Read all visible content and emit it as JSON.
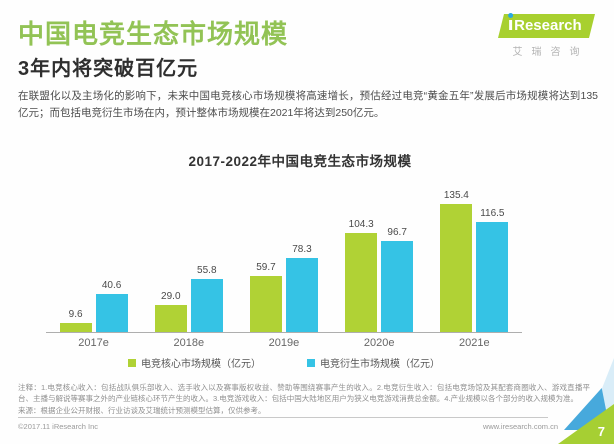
{
  "header": {
    "title": "中国电竞生态市场规模",
    "subtitle": "3年内将突破百亿元",
    "intro": "在联盟化以及主场化的影响下，未来中国电竞核心市场规模将高速增长，预估经过电竞“黄金五年”发展后市场规模将达到135亿元；而包括电竞衍生市场在内，预计整体市场规模在2021年将达到250亿元。",
    "logo": {
      "brand": "Research",
      "brand_cn": "艾瑞咨询"
    }
  },
  "chart_data": {
    "type": "bar",
    "title": "2017-2022年中国电竞生态市场规模",
    "categories": [
      "2017e",
      "2018e",
      "2019e",
      "2020e",
      "2021e"
    ],
    "series": [
      {
        "name": "电竞核心市场规模（亿元）",
        "color": "#b0d235",
        "values": [
          9.6,
          29.0,
          59.7,
          104.3,
          135.4
        ],
        "value_labels": [
          "9.6",
          "29.0",
          "59.7",
          "104.3",
          "135.4"
        ]
      },
      {
        "name": "电竞衍生市场规模（亿元）",
        "color": "#35c3e5",
        "values": [
          40.6,
          55.8,
          78.3,
          96.7,
          116.5
        ],
        "value_labels": [
          "40.6",
          "55.8",
          "78.3",
          "96.7",
          "116.5"
        ]
      }
    ],
    "ylim": [
      0,
      145
    ],
    "grid": false,
    "legend_position": "bottom",
    "value_labels_shown": true
  },
  "footer": {
    "note": "注释：1.电竞核心收入：包括战队俱乐部收入、选手收入以及赛事版权收益、赞助等围绕赛事产生的收入。2.电竞衍生收入：包括电竞场馆及其配套商圈收入、游戏直播平台、主播与解说等赛事之外的产业链核心环节产生的收入。3.电竞游戏收入：包括中国大陆地区用户为狭义电竞游戏消费总金额。4.产业规模以各个部分的收入规模为准。",
    "source": "来源：根据企业公开财报、行业访谈及艾瑞统计预测模型估算，仅供参考。",
    "copyright": "©2017.11 iResearch Inc",
    "website": "www.iresearch.com.cn",
    "page_number": "7"
  }
}
